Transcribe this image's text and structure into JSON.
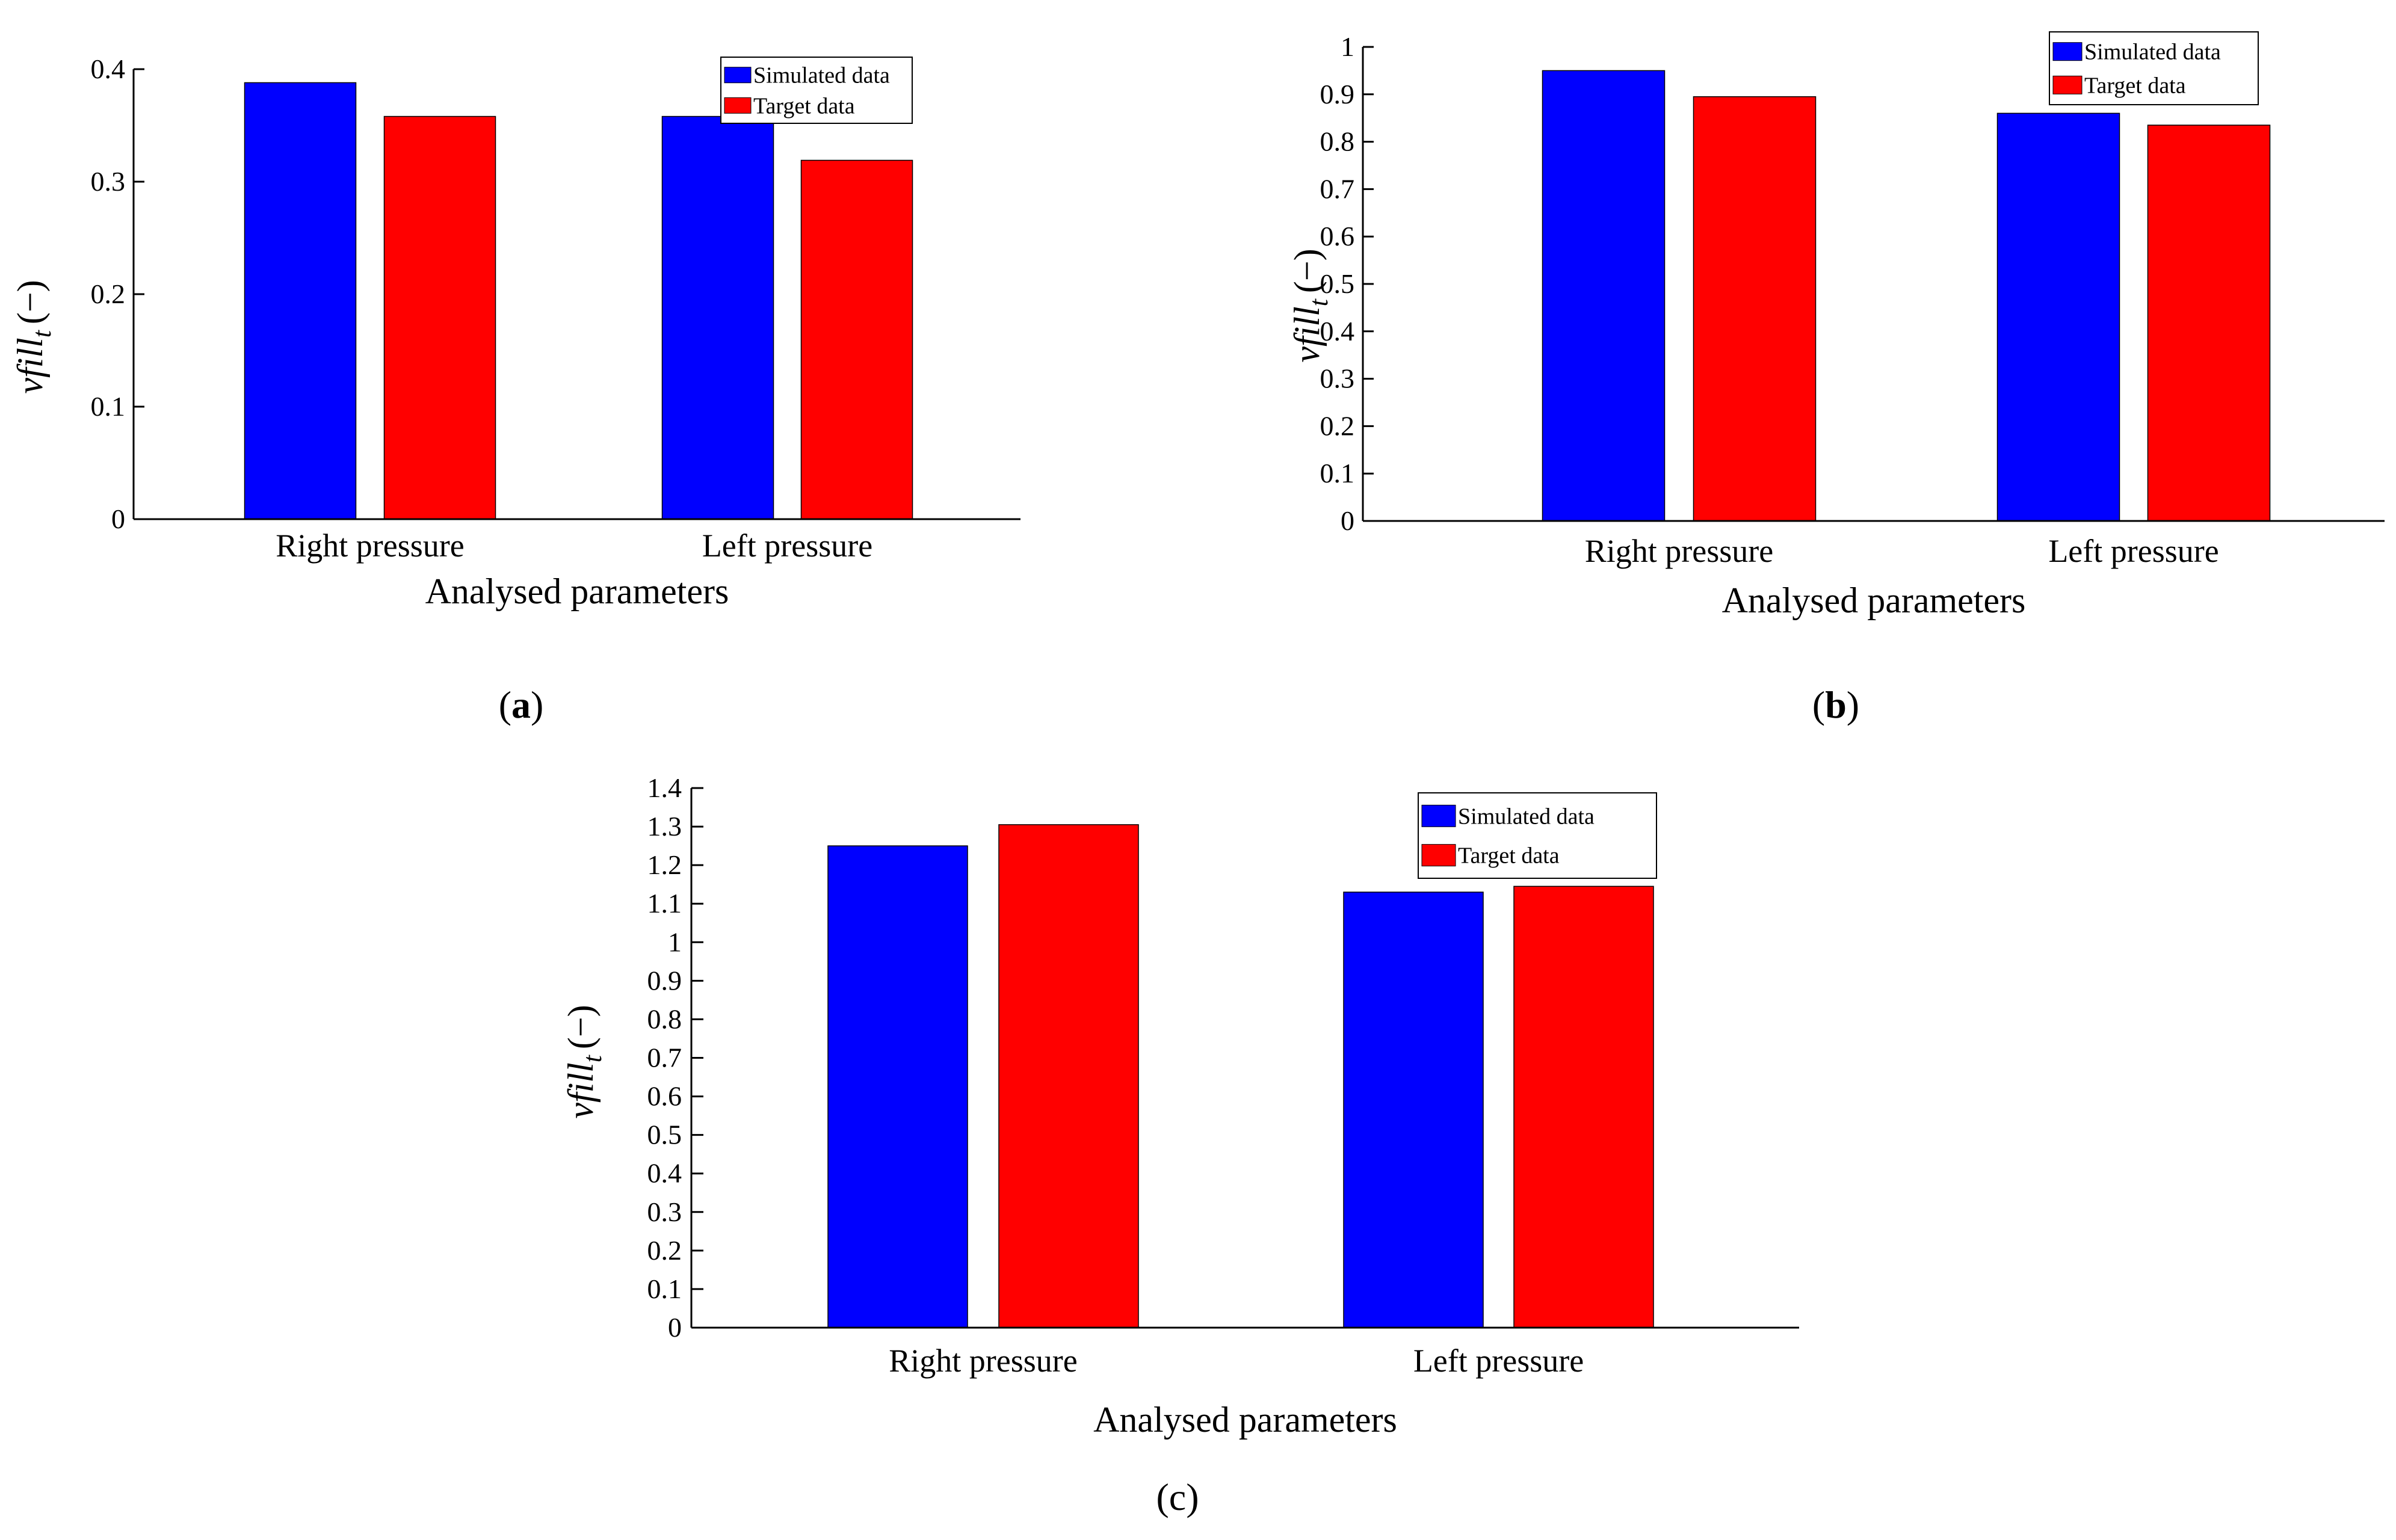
{
  "colors": {
    "simulated": "#0000ff",
    "target": "#ff0000",
    "axis": "#000000"
  },
  "chart_data": [
    {
      "type": "bar",
      "panel": "a",
      "categories": [
        "Right pressure",
        "Left pressure"
      ],
      "series": [
        {
          "name": "Simulated data",
          "values": [
            0.388,
            0.358
          ]
        },
        {
          "name": "Target data",
          "values": [
            0.358,
            0.319
          ]
        }
      ],
      "ylim": [
        0,
        0.4
      ],
      "yticks": [
        0,
        0.1,
        0.2,
        0.3,
        0.4
      ],
      "ytick_labels": [
        "0",
        "0.1",
        "0.2",
        "0.3",
        "0.4"
      ],
      "xlabel": "Analysed parameters",
      "ylabel": {
        "main": "vfill",
        "sub": "t",
        "unit": "(−)"
      },
      "legend_position": "top-right",
      "caption": {
        "open": "(",
        "letter": "a",
        "close": ")"
      }
    },
    {
      "type": "bar",
      "panel": "b",
      "categories": [
        "Right pressure",
        "Left pressure"
      ],
      "series": [
        {
          "name": "Simulated data",
          "values": [
            0.95,
            0.86
          ]
        },
        {
          "name": "Target data",
          "values": [
            0.895,
            0.835
          ]
        }
      ],
      "ylim": [
        0,
        1
      ],
      "yticks": [
        0,
        0.1,
        0.2,
        0.3,
        0.4,
        0.5,
        0.6,
        0.7,
        0.8,
        0.9,
        1
      ],
      "ytick_labels": [
        "0",
        "0.1",
        "0.2",
        "0.3",
        "0.4",
        "0.5",
        "0.6",
        "0.7",
        "0.8",
        "0.9",
        "1"
      ],
      "xlabel": "Analysed parameters",
      "ylabel": {
        "main": "vfill",
        "sub": "t",
        "unit": "(−)"
      },
      "legend_position": "top-right",
      "caption": {
        "open": "(",
        "letter": "b",
        "close": ")"
      }
    },
    {
      "type": "bar",
      "panel": "c",
      "categories": [
        "Right pressure",
        "Left pressure"
      ],
      "series": [
        {
          "name": "Simulated data",
          "values": [
            1.25,
            1.13
          ]
        },
        {
          "name": "Target data",
          "values": [
            1.305,
            1.145
          ]
        }
      ],
      "ylim": [
        0,
        1.4
      ],
      "yticks": [
        0,
        0.1,
        0.2,
        0.3,
        0.4,
        0.5,
        0.6,
        0.7,
        0.8,
        0.9,
        1,
        1.1,
        1.2,
        1.3,
        1.4
      ],
      "ytick_labels": [
        "0",
        "0.1",
        "0.2",
        "0.3",
        "0.4",
        "0.5",
        "0.6",
        "0.7",
        "0.8",
        "0.9",
        "1",
        "1.1",
        "1.2",
        "1.3",
        "1.4"
      ],
      "xlabel": "Analysed parameters",
      "ylabel": {
        "main": "vfill",
        "sub": "t",
        "unit": "(−)"
      },
      "legend_position": "top-right",
      "caption": {
        "open": "(",
        "letter": "c",
        "close": ")"
      }
    }
  ]
}
